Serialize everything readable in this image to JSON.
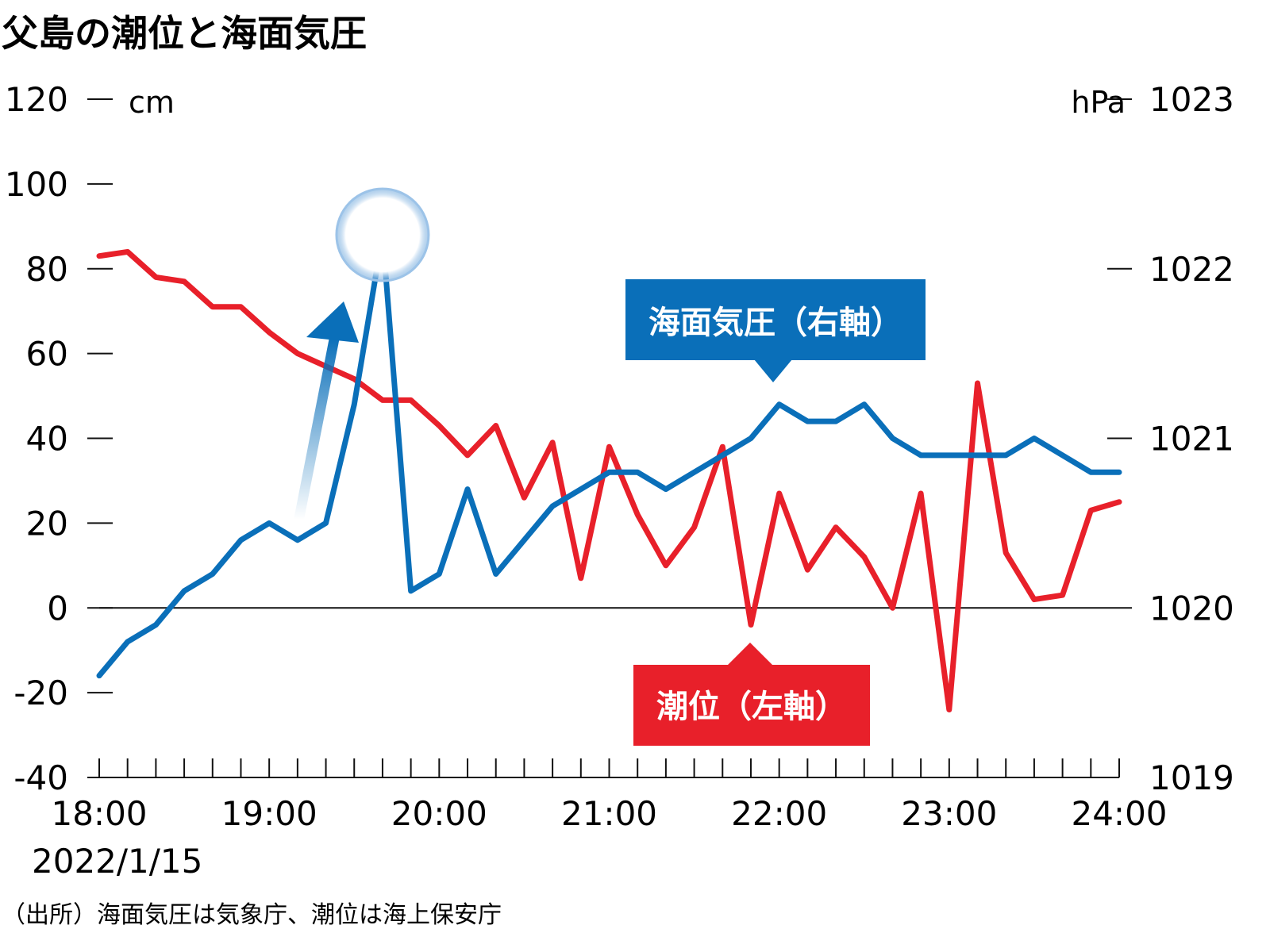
{
  "title": "父島の潮位と海面気圧",
  "source": "（出所）海面気圧は気象庁、潮位は海上保安庁",
  "chart_data": {
    "type": "line",
    "title": "父島の潮位と海面気圧",
    "date_label": "2022/1/15",
    "x_ticks": [
      "18:00",
      "19:00",
      "20:00",
      "21:00",
      "22:00",
      "23:00",
      "24:00"
    ],
    "x_unit": "hours",
    "x_range": [
      18,
      24
    ],
    "left_axis": {
      "unit": "cm",
      "ylim": [
        -40,
        120
      ],
      "ticks": [
        -40,
        -20,
        0,
        20,
        40,
        60,
        80,
        100,
        120
      ]
    },
    "right_axis": {
      "unit": "hPa",
      "ylim": [
        1019,
        1023
      ],
      "ticks": [
        1019,
        1020,
        1021,
        1022,
        1023
      ]
    },
    "grid": false,
    "zero_line": true,
    "series": [
      {
        "name": "潮位（左軸）",
        "axis": "left",
        "color": "#e8202a",
        "x": [
          18.0,
          18.1667,
          18.3333,
          18.5,
          18.6667,
          18.8333,
          19.0,
          19.1667,
          19.3333,
          19.5,
          19.6667,
          19.8333,
          20.0,
          20.1667,
          20.3333,
          20.5,
          20.6667,
          20.8333,
          21.0,
          21.1667,
          21.3333,
          21.5,
          21.6667,
          21.8333,
          22.0,
          22.1667,
          22.3333,
          22.5,
          22.6667,
          22.8333,
          23.0,
          23.1667,
          23.3333,
          23.5,
          23.6667,
          23.8333,
          24.0
        ],
        "values": [
          83,
          84,
          78,
          77,
          71,
          71,
          65,
          60,
          57,
          54,
          49,
          49,
          43,
          36,
          43,
          26,
          39,
          7,
          38,
          22,
          10,
          19,
          38,
          -4,
          27,
          9,
          19,
          12,
          0,
          27,
          -24,
          53,
          13,
          2,
          3,
          23,
          25
        ]
      },
      {
        "name": "海面気圧（右軸）",
        "axis": "right",
        "color": "#0a6fb9",
        "x": [
          18.0,
          18.1667,
          18.3333,
          18.5,
          18.6667,
          18.8333,
          19.0,
          19.1667,
          19.3333,
          19.5,
          19.6667,
          19.8333,
          20.0,
          20.1667,
          20.3333,
          20.5,
          20.6667,
          20.8333,
          21.0,
          21.1667,
          21.3333,
          21.5,
          21.6667,
          21.8333,
          22.0,
          22.1667,
          22.3333,
          22.5,
          22.6667,
          22.8333,
          23.0,
          23.1667,
          23.3333,
          23.5,
          23.6667,
          23.8333,
          24.0
        ],
        "values": [
          1019.6,
          1019.8,
          1019.9,
          1020.1,
          1020.2,
          1020.4,
          1020.5,
          1020.4,
          1020.5,
          1021.2,
          1022.2,
          1020.1,
          1020.2,
          1020.7,
          1020.2,
          1020.4,
          1020.6,
          1020.7,
          1020.8,
          1020.8,
          1020.7,
          1020.8,
          1020.9,
          1021.0,
          1021.2,
          1021.1,
          1021.1,
          1021.2,
          1021.0,
          1020.9,
          1020.9,
          1020.9,
          1020.9,
          1021.0,
          1020.9,
          1020.8,
          1020.8
        ]
      }
    ]
  }
}
